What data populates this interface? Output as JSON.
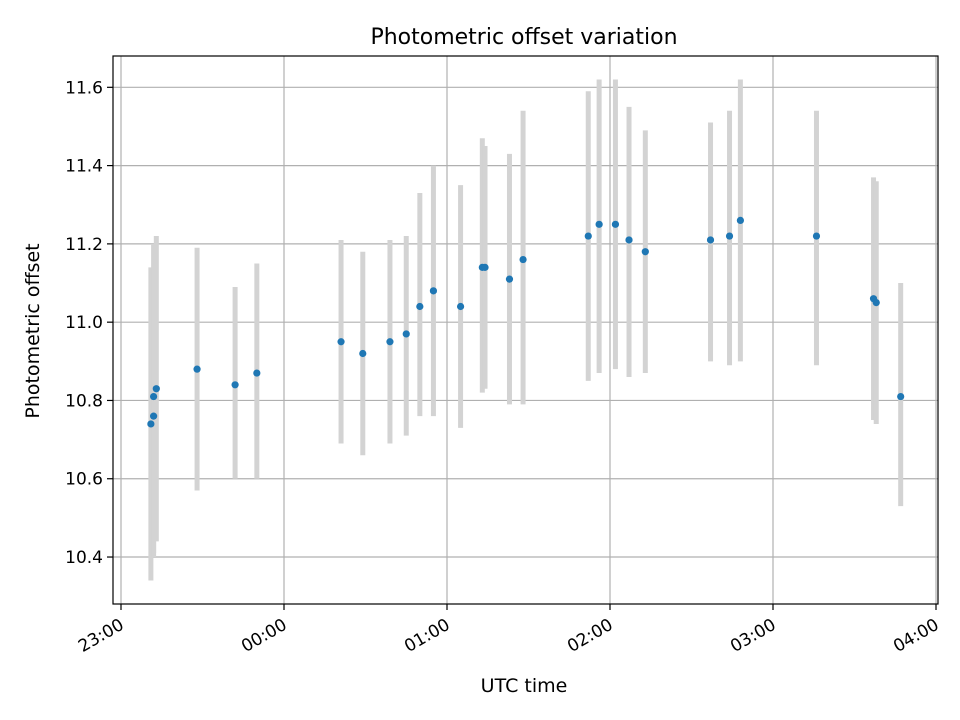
{
  "chart_data": {
    "type": "scatter",
    "title": "Photometric offset variation",
    "xlabel": "UTC time",
    "ylabel": "Photometric offset",
    "x_axis_type": "time",
    "xlim": [
      "23:00",
      "04:00"
    ],
    "ylim": [
      10.28,
      11.68
    ],
    "grid": true,
    "x_ticks": [
      "23:00",
      "00:00",
      "01:00",
      "02:00",
      "03:00",
      "04:00"
    ],
    "y_ticks": [
      "10.4",
      "10.6",
      "10.8",
      "11.0",
      "11.2",
      "11.4",
      "11.6"
    ],
    "points": [
      {
        "t": "23:11",
        "y": 10.74,
        "lo": 10.34,
        "hi": 11.14
      },
      {
        "t": "23:12",
        "y": 10.81,
        "lo": 10.41,
        "hi": 11.2
      },
      {
        "t": "23:12",
        "y": 10.76,
        "lo": 10.4,
        "hi": 11.12
      },
      {
        "t": "23:13",
        "y": 10.83,
        "lo": 10.44,
        "hi": 11.22
      },
      {
        "t": "23:28",
        "y": 10.88,
        "lo": 10.57,
        "hi": 11.19
      },
      {
        "t": "23:42",
        "y": 10.84,
        "lo": 10.6,
        "hi": 11.09
      },
      {
        "t": "23:50",
        "y": 10.87,
        "lo": 10.6,
        "hi": 11.15
      },
      {
        "t": "00:21",
        "y": 10.95,
        "lo": 10.69,
        "hi": 11.21
      },
      {
        "t": "00:29",
        "y": 10.92,
        "lo": 10.66,
        "hi": 11.18
      },
      {
        "t": "00:39",
        "y": 10.95,
        "lo": 10.69,
        "hi": 11.21
      },
      {
        "t": "00:45",
        "y": 10.97,
        "lo": 10.71,
        "hi": 11.22
      },
      {
        "t": "00:50",
        "y": 11.04,
        "lo": 10.76,
        "hi": 11.33
      },
      {
        "t": "00:55",
        "y": 11.08,
        "lo": 10.76,
        "hi": 11.4
      },
      {
        "t": "01:05",
        "y": 11.04,
        "lo": 10.73,
        "hi": 11.35
      },
      {
        "t": "01:13",
        "y": 11.14,
        "lo": 10.82,
        "hi": 11.47
      },
      {
        "t": "01:14",
        "y": 11.14,
        "lo": 10.83,
        "hi": 11.45
      },
      {
        "t": "01:23",
        "y": 11.11,
        "lo": 10.79,
        "hi": 11.43
      },
      {
        "t": "01:28",
        "y": 11.16,
        "lo": 10.79,
        "hi": 11.54
      },
      {
        "t": "01:52",
        "y": 11.22,
        "lo": 10.85,
        "hi": 11.59
      },
      {
        "t": "01:56",
        "y": 11.25,
        "lo": 10.87,
        "hi": 11.62
      },
      {
        "t": "02:02",
        "y": 11.25,
        "lo": 10.88,
        "hi": 11.62
      },
      {
        "t": "02:07",
        "y": 11.21,
        "lo": 10.86,
        "hi": 11.55
      },
      {
        "t": "02:13",
        "y": 11.18,
        "lo": 10.87,
        "hi": 11.49
      },
      {
        "t": "02:37",
        "y": 11.21,
        "lo": 10.9,
        "hi": 11.51
      },
      {
        "t": "02:44",
        "y": 11.22,
        "lo": 10.89,
        "hi": 11.54
      },
      {
        "t": "02:48",
        "y": 11.26,
        "lo": 10.9,
        "hi": 11.62
      },
      {
        "t": "03:16",
        "y": 11.22,
        "lo": 10.89,
        "hi": 11.54
      },
      {
        "t": "03:37",
        "y": 11.06,
        "lo": 10.75,
        "hi": 11.37
      },
      {
        "t": "03:38",
        "y": 11.05,
        "lo": 10.74,
        "hi": 11.36
      },
      {
        "t": "03:47",
        "y": 10.81,
        "lo": 10.53,
        "hi": 11.1
      }
    ],
    "colors": {
      "point": "#1f77b4",
      "errorbar": "#d3d3d3",
      "grid": "#b0b0b0"
    }
  }
}
